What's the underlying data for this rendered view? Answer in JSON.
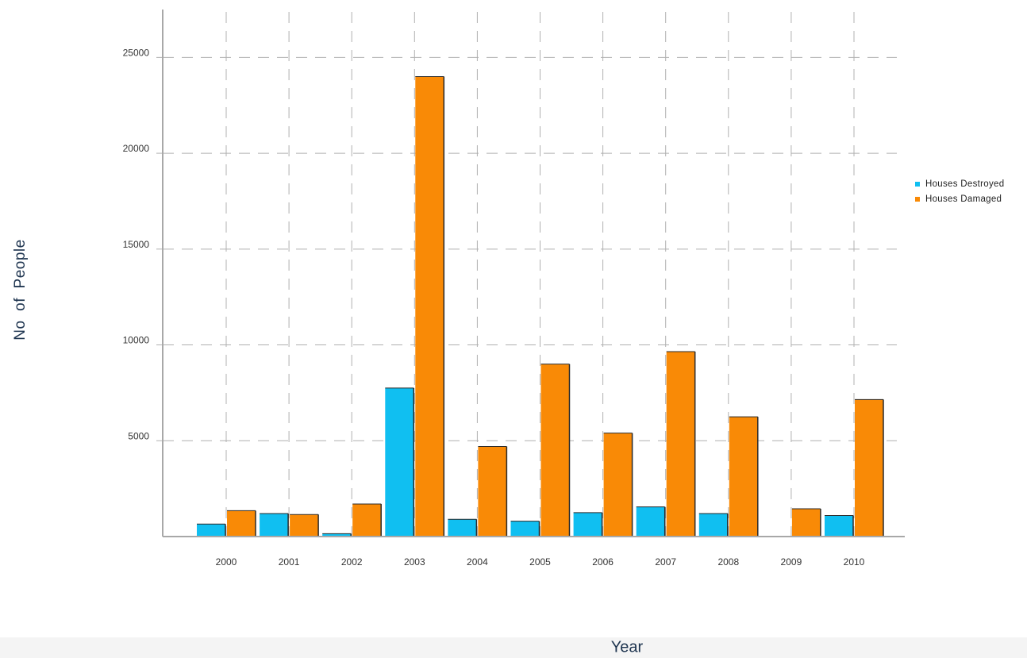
{
  "chart_data": {
    "type": "bar",
    "title": "",
    "xlabel": "Year",
    "ylabel": "No  of  People",
    "categories": [
      "2000",
      "2001",
      "2002",
      "2003",
      "2004",
      "2005",
      "2006",
      "2007",
      "2008",
      "2009",
      "2010"
    ],
    "series": [
      {
        "name": "Houses Destroyed",
        "color": "#10bff1",
        "values": [
          650,
          1200,
          150,
          7750,
          900,
          800,
          1250,
          1550,
          1200,
          0,
          1100
        ]
      },
      {
        "name": "Houses Damaged",
        "color": "#f98a06",
        "values": [
          1350,
          1150,
          1700,
          24000,
          4700,
          9000,
          5400,
          9650,
          6250,
          1450,
          7150
        ]
      }
    ],
    "yticks": [
      5000,
      10000,
      15000,
      20000,
      25000
    ],
    "ylim": [
      0,
      27500
    ],
    "grid": true,
    "legend_position": "right"
  }
}
